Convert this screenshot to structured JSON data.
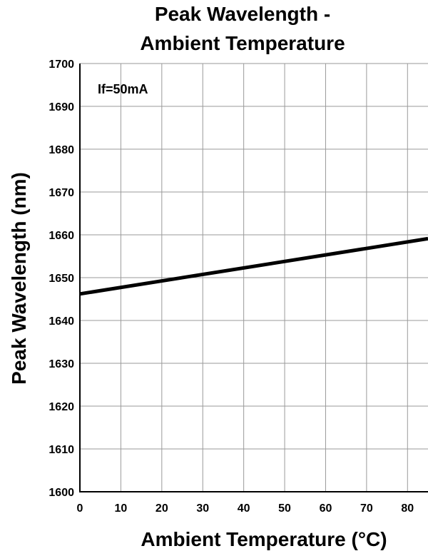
{
  "chart_data": {
    "type": "line",
    "title_lines": [
      "Peak Wavelength -",
      "Ambient Temperature"
    ],
    "xlabel": "Ambient Temperature (°C)",
    "ylabel": "Peak Wavelength (nm)",
    "xlim": [
      0,
      85
    ],
    "ylim": [
      1600,
      1700
    ],
    "x_ticks": [
      0,
      10,
      20,
      30,
      40,
      50,
      60,
      70,
      80
    ],
    "y_ticks": [
      1600,
      1610,
      1620,
      1630,
      1640,
      1650,
      1660,
      1670,
      1680,
      1690,
      1700
    ],
    "grid": true,
    "annotation": "If=50mA",
    "series": [
      {
        "x": [
          0,
          85
        ],
        "y": [
          1646.2,
          1659.1
        ]
      }
    ],
    "colors": {
      "line": "#000000",
      "grid": "#9a9a9a",
      "axis": "#000000"
    }
  }
}
